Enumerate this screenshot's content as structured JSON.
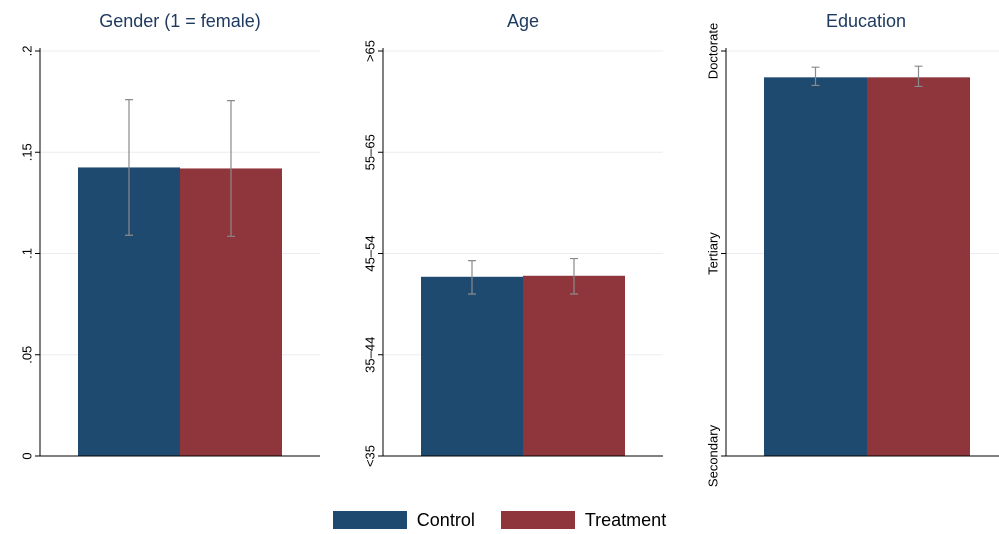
{
  "colors": {
    "control": "#1f4a70",
    "treatment": "#8f353c"
  },
  "legend": {
    "control_label": "Control",
    "treatment_label": "Treatment"
  },
  "chart_data": [
    {
      "type": "bar",
      "title": "Gender (1 = female)",
      "categories": [
        ""
      ],
      "ylim": [
        0,
        0.2
      ],
      "yticks": [
        0,
        0.05,
        0.1,
        0.15,
        0.2
      ],
      "ytick_labels": [
        "0",
        ".05",
        ".1",
        ".15",
        ".2"
      ],
      "grid": true,
      "series": [
        {
          "name": "Control",
          "values": [
            0.1425
          ],
          "error_low": [
            0.109
          ],
          "error_high": [
            0.176
          ]
        },
        {
          "name": "Treatment",
          "values": [
            0.142
          ],
          "error_low": [
            0.1085
          ],
          "error_high": [
            0.1755
          ]
        }
      ]
    },
    {
      "type": "bar",
      "title": "Age",
      "categories": [
        ""
      ],
      "ylim": [
        0,
        4
      ],
      "yticks": [
        0,
        1,
        2,
        3,
        4
      ],
      "ytick_labels": [
        "<35",
        "35–44",
        "45–54",
        "55–65",
        ">65"
      ],
      "grid": true,
      "series": [
        {
          "name": "Control",
          "values": [
            1.77
          ],
          "error_low": [
            1.6
          ],
          "error_high": [
            1.93
          ]
        },
        {
          "name": "Treatment",
          "values": [
            1.78
          ],
          "error_low": [
            1.6
          ],
          "error_high": [
            1.95
          ]
        }
      ]
    },
    {
      "type": "bar",
      "title": "Education",
      "categories": [
        ""
      ],
      "ylim": [
        0,
        2
      ],
      "yticks": [
        0,
        1,
        2
      ],
      "ytick_labels": [
        "Secondary",
        "Tertiary",
        "Doctorate"
      ],
      "grid": true,
      "series": [
        {
          "name": "Control",
          "values": [
            1.87
          ],
          "error_low": [
            1.83
          ],
          "error_high": [
            1.92
          ]
        },
        {
          "name": "Treatment",
          "values": [
            1.87
          ],
          "error_low": [
            1.825
          ],
          "error_high": [
            1.925
          ]
        }
      ]
    }
  ]
}
